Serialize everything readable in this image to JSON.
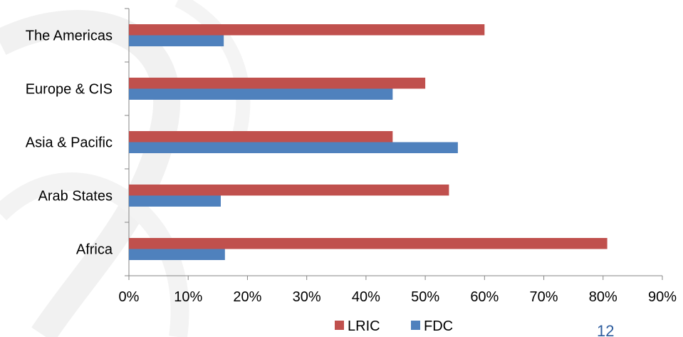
{
  "chart_data": {
    "type": "bar",
    "orientation": "horizontal",
    "categories": [
      "The Americas",
      "Europe & CIS",
      "Asia & Pacific",
      "Arab States",
      "Africa"
    ],
    "series": [
      {
        "name": "LRIC",
        "values": [
          60,
          50,
          44.5,
          54,
          80.7
        ],
        "color": "#c0504d"
      },
      {
        "name": "FDC",
        "values": [
          16,
          44.5,
          55.5,
          15.5,
          16.2
        ],
        "color": "#4f81bd"
      }
    ],
    "x_ticks": [
      "0%",
      "10%",
      "20%",
      "30%",
      "40%",
      "50%",
      "60%",
      "70%",
      "80%",
      "90%"
    ],
    "xlim": [
      0,
      90
    ],
    "unit": "%",
    "legend_position": "bottom",
    "grid": false
  },
  "page_number": "12"
}
